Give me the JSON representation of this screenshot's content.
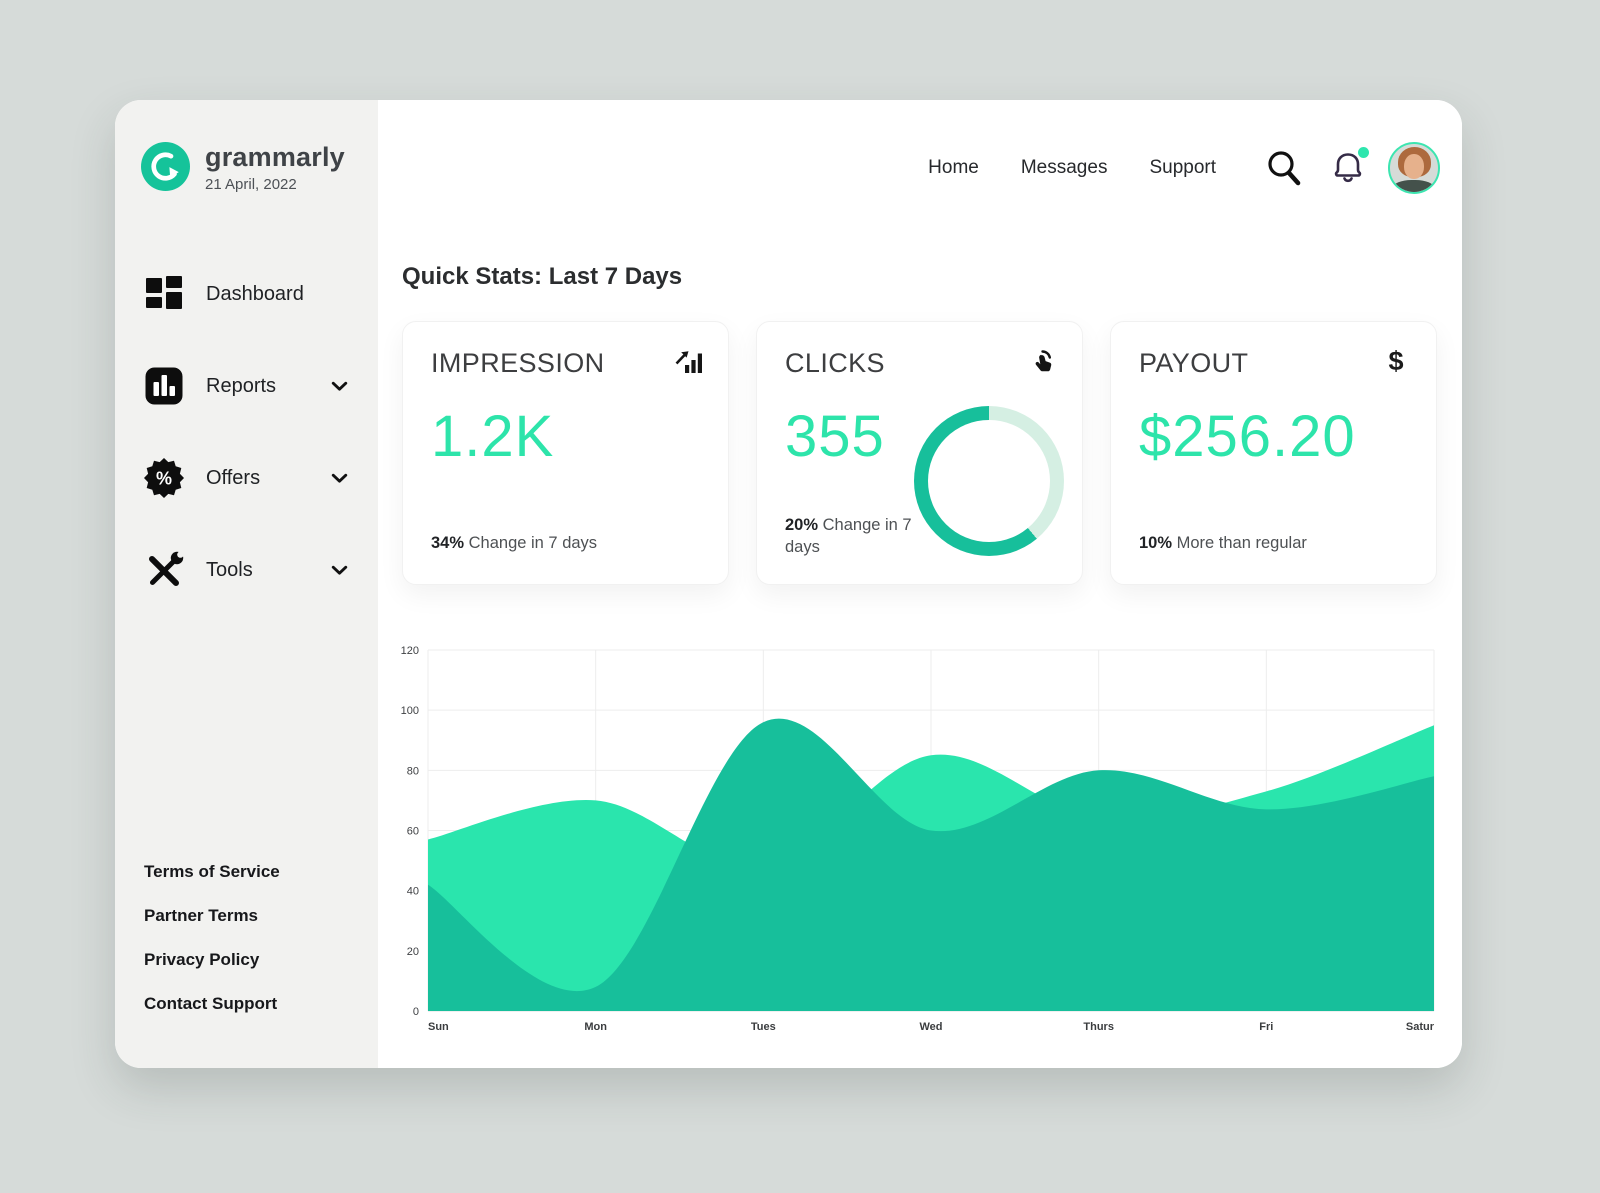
{
  "brand": {
    "name": "grammarly",
    "date": "21 April, 2022"
  },
  "topnav": {
    "links": [
      {
        "label": "Home"
      },
      {
        "label": "Messages"
      },
      {
        "label": "Support"
      }
    ],
    "has_notification_dot": true
  },
  "sidebar": {
    "nav": [
      {
        "label": "Dashboard",
        "icon": "dashboard-grid-icon",
        "expandable": false
      },
      {
        "label": "Reports",
        "icon": "report-bars-icon",
        "expandable": true
      },
      {
        "label": "Offers",
        "icon": "discount-badge-icon",
        "expandable": true
      },
      {
        "label": "Tools",
        "icon": "tools-icon",
        "expandable": true
      }
    ],
    "footer_links": [
      {
        "label": "Terms of Service"
      },
      {
        "label": "Partner Terms"
      },
      {
        "label": "Privacy Policy"
      },
      {
        "label": "Contact Support"
      }
    ]
  },
  "main": {
    "heading": "Quick Stats: Last 7 Days",
    "cards": [
      {
        "title": "IMPRESSION",
        "value": "1.2K",
        "highlight": "34%",
        "note": "Change in 7 days",
        "icon": "impressions-trend-icon"
      },
      {
        "title": "CLICKS",
        "value": "355",
        "highlight": "20%",
        "note": "Change in 7 days",
        "icon": "tap-click-icon",
        "donut": {
          "dark_percent": 61,
          "dark_color": "#17BF9B",
          "track_color": "#D5EFE3"
        }
      },
      {
        "title": "PAYOUT",
        "value": "$256.20",
        "highlight": "10%",
        "note": "More than regular",
        "icon": "dollar-icon",
        "icon_glyph": "$"
      }
    ]
  },
  "chart_data": {
    "type": "area",
    "title": "",
    "categories": [
      "Sun",
      "Mon",
      "Tues",
      "Wed",
      "Thurs",
      "Fri",
      "Satur"
    ],
    "series": [
      {
        "name": "light-green-series",
        "color": "#2AE5AD",
        "values": [
          57,
          70,
          48,
          85,
          64,
          73,
          95
        ]
      },
      {
        "name": "dark-teal-series",
        "color": "#17BF9B",
        "values": [
          42,
          8,
          96,
          60,
          80,
          67,
          78
        ]
      }
    ],
    "xlabel": "",
    "ylabel": "",
    "ylim": [
      0,
      120
    ],
    "yticks": [
      0,
      20,
      40,
      60,
      80,
      100,
      120
    ],
    "grid": true,
    "legend": "none",
    "smooth": true
  },
  "colors": {
    "accent_green": "#2DE4AA",
    "logo_green": "#15C39A",
    "page_bg": "#D6DBD9",
    "sidebar_bg": "#F2F2F0",
    "notification_dot": "#2EE6AE",
    "bell_stroke": "#352B47"
  }
}
